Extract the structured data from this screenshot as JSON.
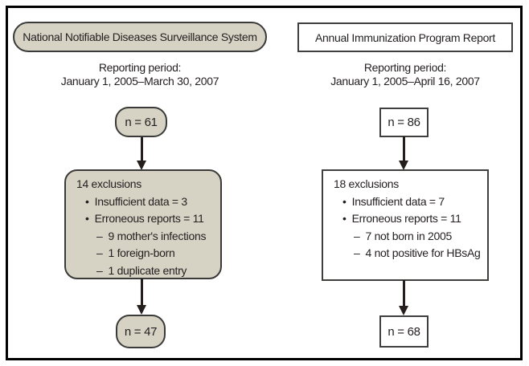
{
  "colors": {
    "left_box_fill": "#d6d2c4",
    "right_box_fill": "#ffffff",
    "box_border": "#3a3a38",
    "outer_frame": "#000000",
    "text": "#231f20",
    "arrow": "#241f1c"
  },
  "left": {
    "header": "National Notifiable Diseases Surveillance System",
    "reporting_label": "Reporting period:",
    "reporting_dates": "January 1, 2005–March 30, 2007",
    "n_start": "n = 61",
    "exclusions": {
      "title": "14 exclusions",
      "items": [
        {
          "marker": "•",
          "text": "Insufficient data = 3"
        },
        {
          "marker": "•",
          "text": "Erroneous reports = 11"
        },
        {
          "marker": "–",
          "text": "9 mother's infections"
        },
        {
          "marker": "–",
          "text": "1 foreign-born"
        },
        {
          "marker": "–",
          "text": "1 duplicate entry"
        }
      ]
    },
    "n_end": "n = 47"
  },
  "right": {
    "header": "Annual Immunization Program Report",
    "reporting_label": "Reporting period:",
    "reporting_dates": "January 1, 2005–April 16, 2007",
    "n_start": "n = 86",
    "exclusions": {
      "title": "18 exclusions",
      "items": [
        {
          "marker": "•",
          "text": "Insufficient data = 7"
        },
        {
          "marker": "•",
          "text": "Erroneous reports = 11"
        },
        {
          "marker": "–",
          "text": "7 not born in 2005"
        },
        {
          "marker": "–",
          "text": "4 not positive for HBsAg"
        }
      ]
    },
    "n_end": "n = 68"
  }
}
